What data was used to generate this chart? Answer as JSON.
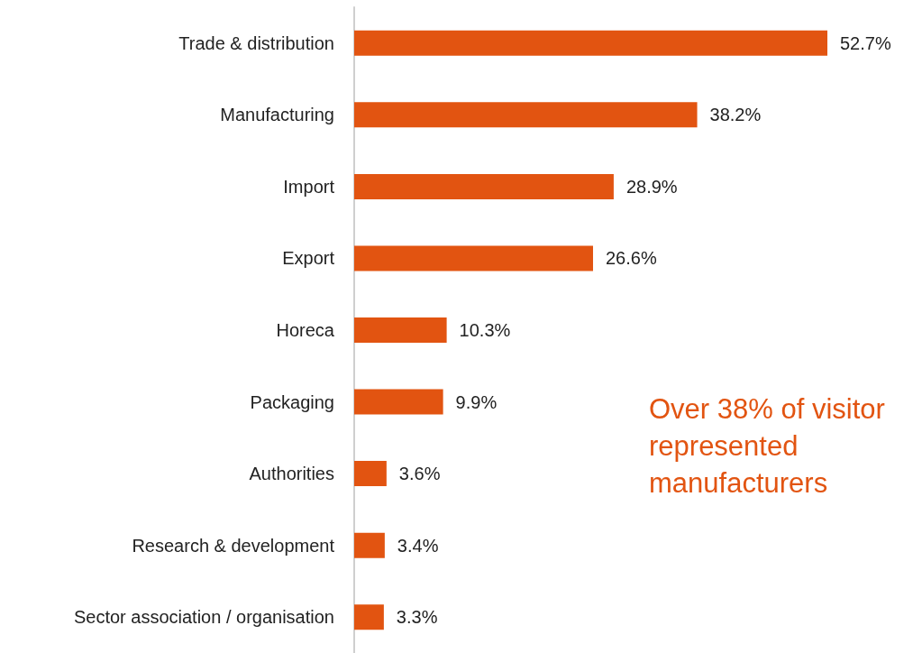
{
  "chart_data": {
    "type": "bar",
    "orientation": "horizontal",
    "categories": [
      "Trade & distribution",
      "Manufacturing",
      "Import",
      "Export",
      "Horeca",
      "Packaging",
      "Authorities",
      "Research & development",
      "Sector association / organisation"
    ],
    "values": [
      52.7,
      38.2,
      28.9,
      26.6,
      10.3,
      9.9,
      3.6,
      3.4,
      3.3
    ],
    "value_labels": [
      "52.7%",
      "38.2%",
      "28.9%",
      "26.6%",
      "10.3%",
      "9.9%",
      "3.6%",
      "3.4%",
      "3.3%"
    ],
    "color": "#e25411",
    "annotations": [
      "Over 38% of visitor represented manufacturers"
    ]
  }
}
